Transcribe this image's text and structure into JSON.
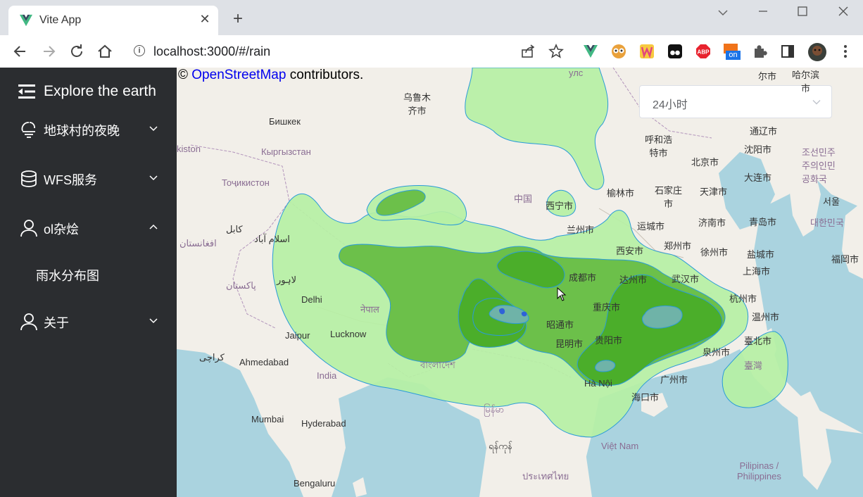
{
  "browser": {
    "tab_title": "Vite App",
    "tab_close": "✕",
    "new_tab": "+",
    "url": "localhost:3000/#/rain",
    "extension_badge": "on"
  },
  "sidebar": {
    "brand": "Explore the earth",
    "menus": [
      {
        "label": "地球村的夜晚",
        "icon": "moon-cloud-icon",
        "expanded": false
      },
      {
        "label": "WFS服务",
        "icon": "database-icon",
        "expanded": false
      },
      {
        "label": "ol杂烩",
        "icon": "user-icon",
        "expanded": true,
        "children": [
          "雨水分布图"
        ]
      },
      {
        "label": "关于",
        "icon": "user-icon",
        "expanded": false
      }
    ]
  },
  "map": {
    "attribution_prefix": "© ",
    "attribution_link": "OpenStreetMap",
    "attribution_suffix": " contributors.",
    "time_select": {
      "value": "24小时"
    },
    "labels": {
      "urumqi": "乌鲁木\n齐市",
      "bishkek": "Бишкек",
      "kyrgyzstan": "Кыргызстан",
      "tajikistan": "Тоҷикистон",
      "kistan": "kiston",
      "kabul": "کابل",
      "afghanistan": "افغانستان",
      "islamabad": "اسلام آباد",
      "pakistan": "پاکستان",
      "lahore": "لاہور",
      "delhi": "Delhi",
      "nepal": "नेपाल",
      "lucknow": "Lucknow",
      "jaipur": "Jaipur",
      "karachi": "کراچی",
      "ahmedabad": "Ahmedabad",
      "india": "India",
      "bangladesh": "বাংলাদেশ",
      "mumbai": "Mumbai",
      "hyderabad": "Hyderabad",
      "bengaluru": "Bengaluru",
      "myanmar": "မြန်မာ",
      "myanmar2": "ရန်ကုန်",
      "thailand": "ประเทศไทย",
      "vietnam": "Việt Nam",
      "hanoi": "Hà Nội",
      "haikou": "海口市",
      "guangzhou": "广州市",
      "quanzhou": "泉州市",
      "taipei": "臺北市",
      "taiwan": "臺灣",
      "philippines": "Pilipinas /\nPhilippines",
      "china": "中国",
      "xining": "西宁市",
      "lanzhou": "兰州市",
      "xian": "西安市",
      "chengdu": "成都市",
      "chongqing": "重庆市",
      "dazhou": "达州市",
      "zhaotong": "昭通市",
      "kunming": "昆明市",
      "guiyang": "贵阳市",
      "wuhan": "武汉市",
      "hangzhou": "杭州市",
      "wenzhou": "温州市",
      "shanghai": "上海市",
      "yancheng": "盐城市",
      "xuzhou": "徐州市",
      "zhengzhou": "郑州市",
      "yuncheng": "运城市",
      "jinan": "济南市",
      "qingdao": "青岛市",
      "tianjin": "天津市",
      "beijing": "北京市",
      "shijiazhuang": "石家庄\n市",
      "yulin": "榆林市",
      "hohhot": "呼和浩\n特市",
      "shenyang": "沈阳市",
      "dalian": "大连市",
      "tonghua": "通辽市",
      "korea_n": "조선민주\n주의인민\n공화국",
      "seoul": "서울",
      "korea_s": "대한민국",
      "fukuoka": "福岡市",
      "ulan": "улс",
      "erlian": "尔市",
      "harbin": "哈尔滨\n市"
    }
  },
  "colors": {
    "sidebar_bg": "#2b2d30",
    "light_rain": "#b6f0a4",
    "mid_rain": "#6cc04a",
    "heavy_rain": "#4bae2a",
    "storm": "#6fb3a8",
    "extreme": "#2f62d8",
    "contour_stroke": "#2a9bd8",
    "sea": "#aad3df"
  }
}
